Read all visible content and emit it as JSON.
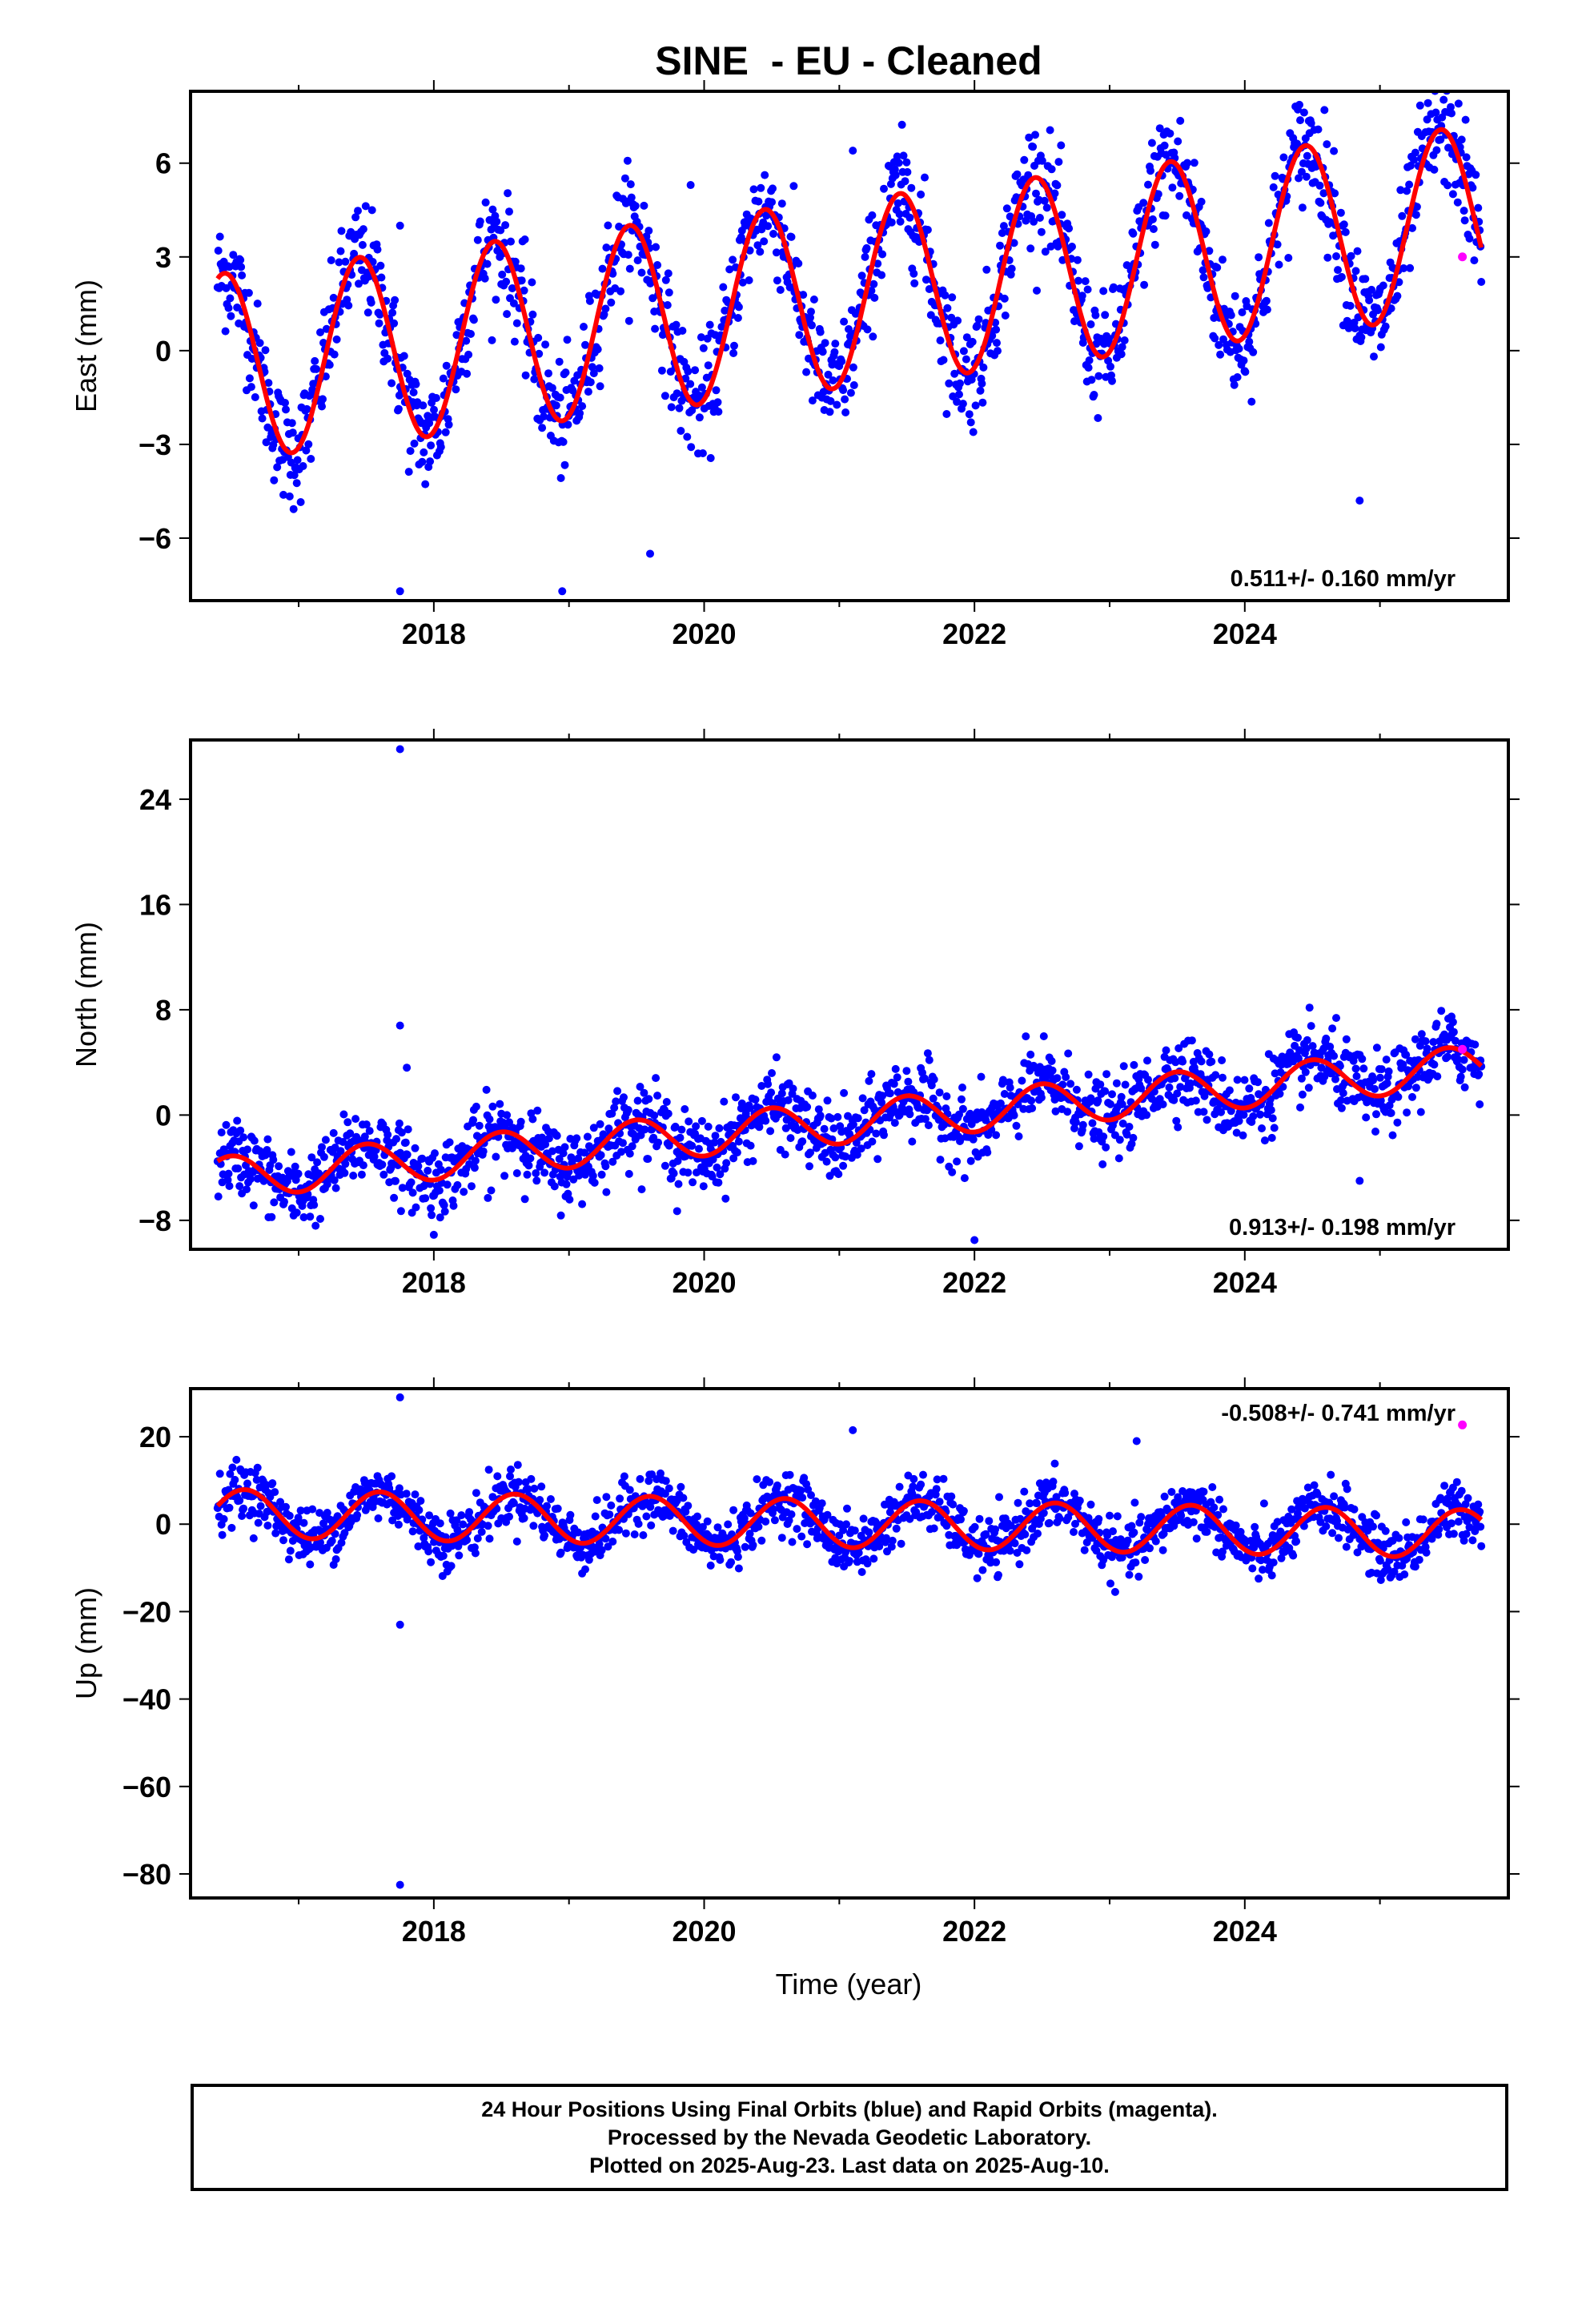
{
  "title": "SINE  - EU - Cleaned",
  "xlabel": "Time (year)",
  "footer": {
    "line1": "24 Hour Positions Using Final Orbits (blue) and Rapid Orbits (magenta).",
    "line2": "Processed by the Nevada Geodetic Laboratory.",
    "line3": "Plotted on 2025-Aug-23. Last data on 2025-Aug-10."
  },
  "colors": {
    "final": "#0000ff",
    "rapid": "#ff00ff",
    "model": "#ff0000"
  },
  "chart_data": [
    {
      "type": "scatter",
      "name": "East",
      "ylabel": "East (mm)",
      "xlim": [
        2016.2,
        2025.95
      ],
      "ylim": [
        -8,
        8.3
      ],
      "yticks": [
        -6,
        -3,
        0,
        3,
        6
      ],
      "xticks": [
        2018,
        2020,
        2022,
        2024
      ],
      "rate_label": "0.511+/- 0.160 mm/yr",
      "rate_position": "bottom-right",
      "model": {
        "intercept": -0.55,
        "trend": 0.511,
        "annual_amp": 3.0,
        "annual_peak": 0.45,
        "start": 2016.4,
        "end": 2025.75
      },
      "noise_sd": 0.9,
      "outliers": [
        [
          2017.75,
          -7.7
        ],
        [
          2018.95,
          -7.7
        ],
        [
          2021.1,
          6.4
        ],
        [
          2019.9,
          5.3
        ],
        [
          2017.75,
          4.0
        ],
        [
          2024.85,
          -4.8
        ],
        [
          2019.6,
          -6.5
        ]
      ],
      "rapid": [
        [
          2025.61,
          3.0
        ]
      ]
    },
    {
      "type": "scatter",
      "name": "North",
      "ylabel": "North (mm)",
      "xlim": [
        2016.2,
        2025.95
      ],
      "ylim": [
        -10.2,
        28.5
      ],
      "yticks": [
        -8,
        0,
        8,
        16,
        24
      ],
      "xticks": [
        2018,
        2020,
        2022,
        2024
      ],
      "rate_label": "0.913+/- 0.198 mm/yr",
      "rate_position": "bottom-right",
      "model": {
        "intercept": -4.8,
        "trend": 0.913,
        "annual_amp": 1.6,
        "annual_peak": 0.5,
        "start": 2016.4,
        "end": 2025.75
      },
      "noise_sd": 1.4,
      "outliers": [
        [
          2017.75,
          27.8
        ],
        [
          2017.75,
          6.8
        ],
        [
          2017.8,
          3.6
        ],
        [
          2018.0,
          -9.1
        ],
        [
          2019.8,
          -7.3
        ],
        [
          2022.0,
          -9.5
        ],
        [
          2024.85,
          -5.0
        ],
        [
          2018.4,
          -6.3
        ]
      ],
      "rapid": [
        [
          2025.61,
          5.0
        ]
      ]
    },
    {
      "type": "scatter",
      "name": "Up",
      "ylabel": "Up (mm)",
      "xlim": [
        2016.2,
        2025.95
      ],
      "ylim": [
        -85.5,
        31
      ],
      "yticks": [
        -80,
        -60,
        -40,
        -20,
        0,
        20
      ],
      "xticks": [
        2018,
        2020,
        2022,
        2024
      ],
      "rate_label": "-0.508+/- 0.741 mm/yr",
      "rate_position": "top-right",
      "model": {
        "intercept": 2.5,
        "trend": -0.508,
        "annual_amp": 5.5,
        "annual_peak": 0.6,
        "start": 2016.4,
        "end": 2025.75
      },
      "noise_sd": 3.2,
      "outliers": [
        [
          2017.75,
          29.0
        ],
        [
          2017.75,
          -82.5
        ],
        [
          2017.75,
          -23.0
        ],
        [
          2021.1,
          21.5
        ],
        [
          2023.2,
          19.0
        ]
      ],
      "rapid": [
        [
          2025.61,
          22.7
        ]
      ]
    }
  ]
}
